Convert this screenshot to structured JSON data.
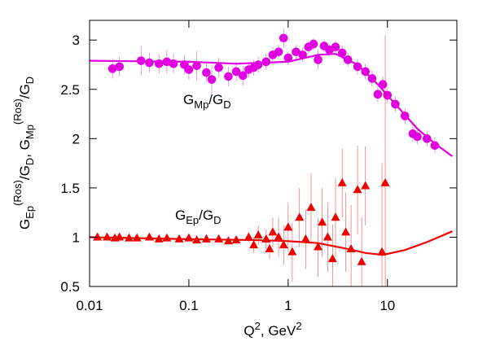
{
  "chart_data": {
    "type": "scatter",
    "xlabel_parts": [
      "Q",
      "2",
      ", GeV",
      "2"
    ],
    "ylabel_parts": [
      "G",
      "Ep",
      "(Ros)",
      "/G",
      "D",
      ",   G",
      "Mp",
      "(Ros)",
      "/G",
      "D"
    ],
    "annotations": [
      {
        "parts": [
          "G",
          "Mp",
          "/G",
          "D"
        ],
        "color": "#000000"
      },
      {
        "parts": [
          "G",
          "Ep",
          "/G",
          "D"
        ],
        "color": "#000000"
      }
    ],
    "xscale": "log",
    "xlim": [
      0.01,
      50
    ],
    "ylim": [
      0.5,
      3.2
    ],
    "xticks": [
      0.01,
      0.1,
      1,
      10
    ],
    "yticks": [
      0.5,
      1,
      1.5,
      2,
      2.5,
      3
    ],
    "series": [
      {
        "type": "scatter",
        "marker": "circle",
        "color": "#e000e0",
        "x": [
          0.017,
          0.02,
          0.033,
          0.04,
          0.05,
          0.06,
          0.07,
          0.09,
          0.1,
          0.12,
          0.15,
          0.17,
          0.2,
          0.25,
          0.3,
          0.35,
          0.4,
          0.45,
          0.5,
          0.6,
          0.7,
          0.8,
          0.9,
          1.0,
          1.2,
          1.4,
          1.6,
          1.8,
          2.0,
          2.3,
          2.6,
          3.0,
          3.5,
          4.0,
          5.0,
          6.0,
          7.0,
          8.0,
          9.0,
          10,
          12,
          15,
          18,
          20,
          25,
          30
        ],
        "values": [
          2.71,
          2.73,
          2.79,
          2.77,
          2.76,
          2.78,
          2.76,
          2.75,
          2.7,
          2.74,
          2.67,
          2.6,
          2.72,
          2.63,
          2.68,
          2.64,
          2.7,
          2.72,
          2.75,
          2.78,
          2.85,
          2.88,
          3.02,
          2.82,
          2.88,
          2.85,
          2.93,
          2.96,
          2.8,
          2.94,
          2.9,
          2.93,
          2.87,
          2.8,
          2.73,
          2.68,
          2.61,
          2.45,
          2.55,
          2.44,
          2.35,
          2.23,
          2.05,
          2.02,
          2.0,
          1.93
        ],
        "errors": [
          0.1,
          0.1,
          0.15,
          0.1,
          0.1,
          0.12,
          0.1,
          0.1,
          0.1,
          0.15,
          0.1,
          0.15,
          0.1,
          0.1,
          0.1,
          0.1,
          0.08,
          0.08,
          0.08,
          0.08,
          0.08,
          0.07,
          0.1,
          0.07,
          0.07,
          0.07,
          0.06,
          0.06,
          0.1,
          0.06,
          0.06,
          0.06,
          0.07,
          0.07,
          0.08,
          0.08,
          0.08,
          0.08,
          0.08,
          0.08,
          0.08,
          0.08,
          0.08,
          0.08,
          0.08,
          0.08
        ]
      },
      {
        "type": "line",
        "color": "#e000e0",
        "x": [
          0.01,
          0.1,
          0.3,
          1,
          2,
          3,
          5,
          8,
          12,
          20,
          30,
          45
        ],
        "values": [
          2.79,
          2.78,
          2.76,
          2.78,
          2.85,
          2.86,
          2.75,
          2.55,
          2.35,
          2.1,
          1.95,
          1.82
        ]
      },
      {
        "type": "scatter",
        "marker": "triangle",
        "color": "#ee0000",
        "x": [
          0.012,
          0.015,
          0.018,
          0.02,
          0.025,
          0.03,
          0.04,
          0.05,
          0.06,
          0.08,
          0.1,
          0.12,
          0.15,
          0.2,
          0.25,
          0.3,
          0.4,
          0.45,
          0.5,
          0.6,
          0.65,
          0.7,
          0.8,
          0.9,
          1.0,
          1.1,
          1.3,
          1.5,
          1.7,
          2.0,
          2.2,
          2.5,
          2.8,
          3.0,
          3.5,
          3.8,
          4.3,
          5.0,
          5.5,
          6.0,
          8.8,
          9.5
        ],
        "values": [
          1.0,
          1.0,
          0.99,
          1.0,
          0.99,
          0.99,
          1.0,
          0.98,
          0.99,
          0.98,
          0.99,
          0.97,
          0.98,
          0.98,
          0.96,
          0.97,
          1.0,
          0.92,
          1.02,
          0.98,
          0.88,
          1.05,
          1.0,
          0.92,
          1.1,
          0.85,
          1.2,
          0.98,
          1.3,
          0.9,
          1.15,
          1.0,
          0.78,
          1.2,
          1.55,
          1.05,
          0.88,
          1.48,
          0.75,
          1.52,
          0.85,
          1.55
        ],
        "errors": [
          0.03,
          0.03,
          0.03,
          0.03,
          0.03,
          0.03,
          0.03,
          0.03,
          0.03,
          0.03,
          0.03,
          0.03,
          0.03,
          0.03,
          0.03,
          0.03,
          0.05,
          0.08,
          0.1,
          0.1,
          0.1,
          0.15,
          0.2,
          0.2,
          0.25,
          0.3,
          0.3,
          0.3,
          0.35,
          0.3,
          0.35,
          0.35,
          0.35,
          0.4,
          0.35,
          0.4,
          0.45,
          0.45,
          0.45,
          0.4,
          0.9,
          1.5
        ]
      },
      {
        "type": "line",
        "color": "#ee0000",
        "x": [
          0.01,
          0.1,
          0.5,
          1,
          2,
          4,
          6,
          9,
          15,
          25,
          45
        ],
        "values": [
          1.0,
          0.98,
          0.97,
          0.96,
          0.94,
          0.88,
          0.84,
          0.82,
          0.87,
          0.95,
          1.06
        ]
      }
    ]
  }
}
